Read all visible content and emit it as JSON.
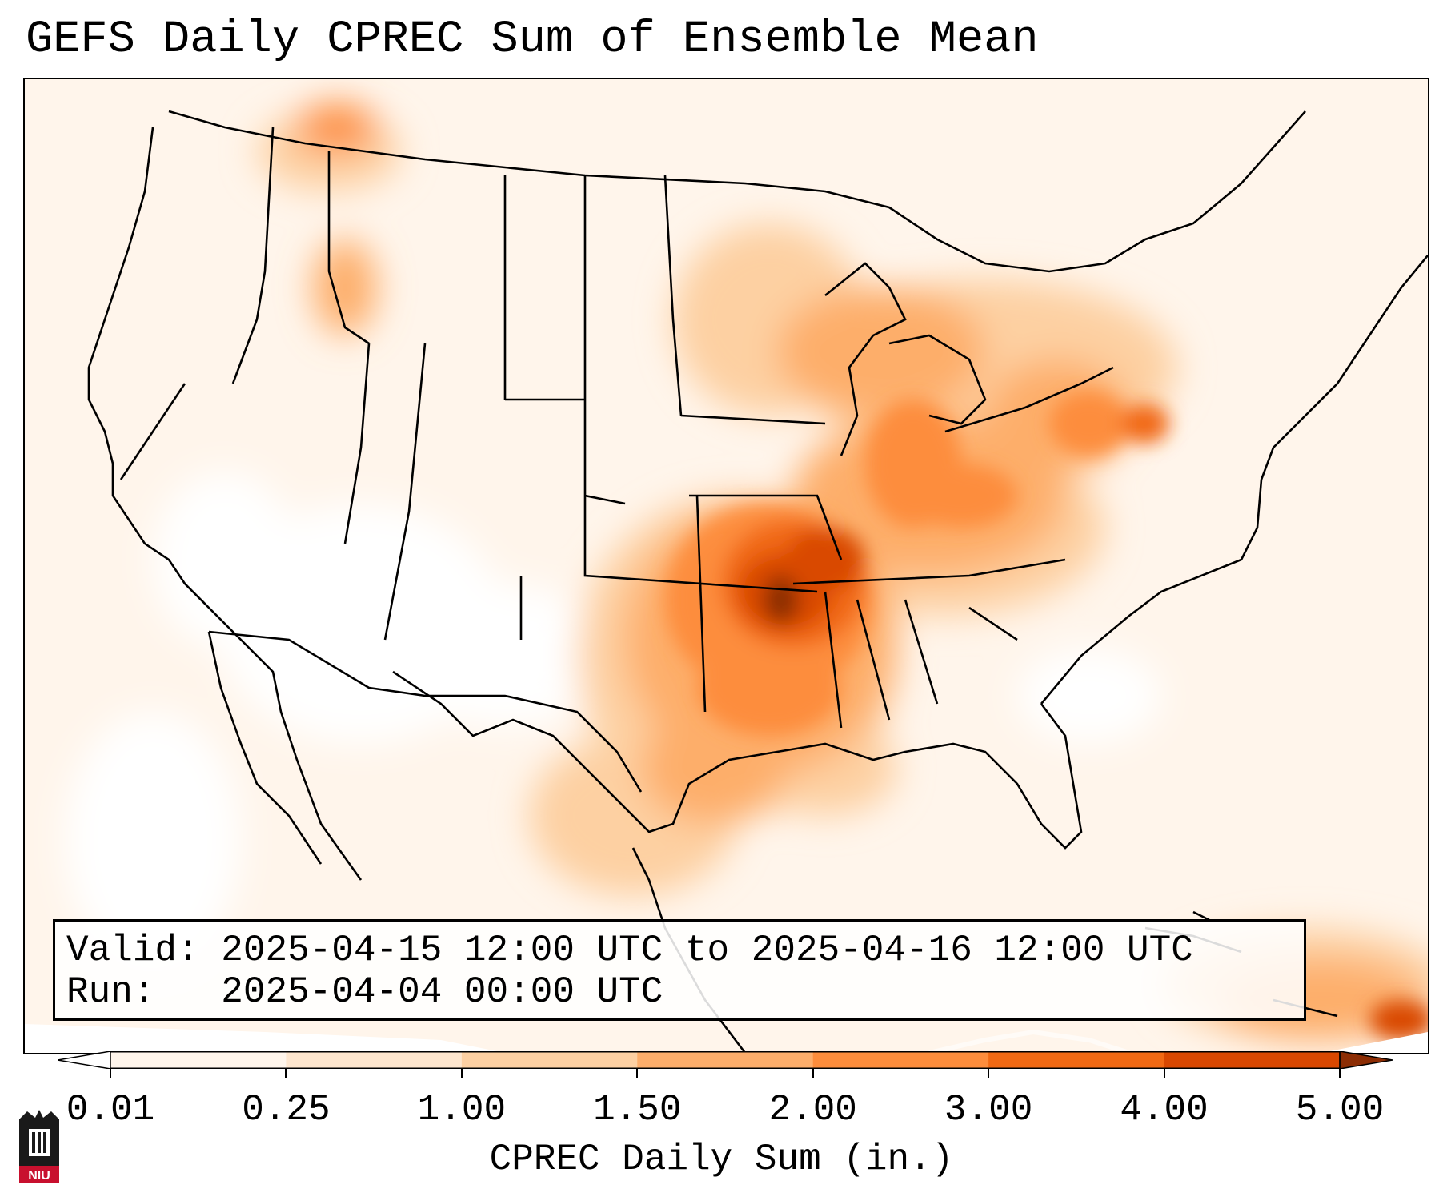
{
  "title": "GEFS Daily CPREC Sum of Ensemble Mean",
  "info": {
    "valid_label": "Valid:",
    "valid_value": "2025-04-15 12:00 UTC to 2025-04-16 12:00 UTC",
    "run_label": "Run:",
    "run_value": "2025-04-04 00:00 UTC"
  },
  "colorbar": {
    "label": "CPREC Daily Sum (in.)",
    "ticks": [
      "0.01",
      "0.25",
      "1.00",
      "1.50",
      "2.00",
      "3.00",
      "4.00",
      "5.00"
    ],
    "colors": [
      "#fff5eb",
      "#fee6ce",
      "#fdd0a2",
      "#fdae6b",
      "#fd8d3c",
      "#f16913",
      "#d94801",
      "#8c2d04"
    ],
    "extend": "both"
  },
  "map": {
    "region": "Continental United States",
    "variable": "CPREC",
    "precip_colors": {
      "none": "#ffffff",
      "trace": "#fff5eb",
      "light": "#fee6ce",
      "moderate": "#fdd0a2",
      "heavy": "#fdae6b",
      "very_heavy": "#fd8d3c",
      "intense": "#f16913",
      "extreme": "#d94801",
      "max": "#8c2d04"
    }
  },
  "logo": {
    "text": "NIU"
  }
}
